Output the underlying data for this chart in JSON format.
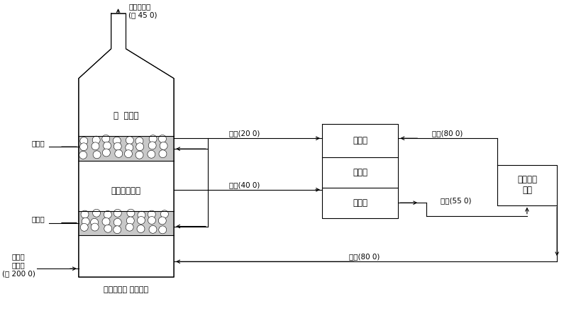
{
  "bg_color": "#ffffff",
  "boiler_label": "다단유동층 열교환기",
  "exhaust_label": "비가스출구\n(약 45 0)",
  "boiler_gas_label": "보일러\n비가스\n(약 200 0)",
  "upper_layer_label": "물  유동층",
  "lower_layer_label": "열미채유동층",
  "heat_pipe_upper": "견열관",
  "heat_pipe_lower": "견열관",
  "evaporator_label": "증발기",
  "heat_pump_label": "열펌프",
  "condenser_label": "응축기",
  "supply_label": "온수사용\n공경",
  "label_neng_up": "냉수(20 0)",
  "label_neng_right": "냉수(80 0)",
  "label_ons_up": "온수(40 0)",
  "label_ons_mid": "온수(55 0)",
  "label_ons_bot": "온수(80 0)"
}
